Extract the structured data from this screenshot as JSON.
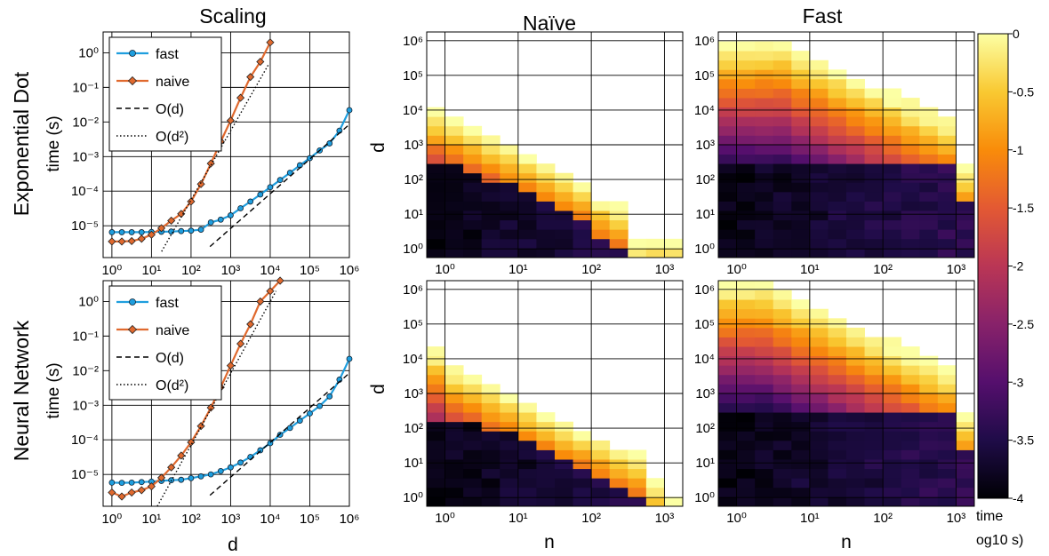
{
  "column_titles": {
    "scaling": "Scaling",
    "naive": "Naïve",
    "fast": "Fast"
  },
  "row_titles": {
    "top": [
      "Exponential Dot",
      "time (s)"
    ],
    "bottom": [
      "Neural Network",
      "time (s)"
    ]
  },
  "axis_labels": {
    "d": "d",
    "n": "n"
  },
  "colorbar": {
    "ticks": [
      "0",
      "-0.5",
      "-1",
      "-1.5",
      "-2",
      "-2.5",
      "-3",
      "-3.5",
      "-4"
    ],
    "label_line1": "time",
    "label_line2": "og10 s)",
    "range": [
      -4,
      0
    ],
    "colormap": "inferno"
  },
  "chart_data": [
    {
      "type": "line",
      "panel": "exponential-dot-scaling",
      "xlabel": "",
      "ylabel": "time (s)",
      "xscale": "log",
      "yscale": "log",
      "xlim": [
        0.6,
        1000000
      ],
      "ylim": [
        1.2e-06,
        4
      ],
      "grid": true,
      "legend": "top-left",
      "x_ticks": [
        "10⁰",
        "10¹",
        "10²",
        "10³",
        "10⁴",
        "10⁵",
        "10⁶"
      ],
      "y_ticks": [
        "10⁻⁵",
        "10⁻⁴",
        "10⁻³",
        "10⁻²",
        "10⁻¹",
        "10⁰"
      ],
      "series": [
        {
          "name": "fast",
          "color": "#1f9ede",
          "marker": "circle",
          "x": [
            1,
            1.78,
            3.16,
            5.62,
            10,
            17.8,
            31.6,
            56.2,
            100,
            178,
            316,
            562,
            1000,
            1780,
            3160,
            5620,
            10000,
            17800,
            31600,
            56200,
            100000,
            178000,
            316000,
            562000,
            1000000
          ],
          "y": [
            6.5e-06,
            6.5e-06,
            6.5e-06,
            6.5e-06,
            6.6e-06,
            6.7e-06,
            6.8e-06,
            7e-06,
            7.2e-06,
            7.7e-06,
            1.25e-05,
            1.5e-05,
            2e-05,
            3.2e-05,
            5e-05,
            8e-05,
            0.00013,
            0.00021,
            0.00034,
            0.00056,
            0.0009,
            0.0015,
            0.0024,
            0.0056,
            0.022
          ]
        },
        {
          "name": "naive",
          "color": "#e0692e",
          "marker": "diamond",
          "x": [
            1,
            1.78,
            3.16,
            5.62,
            10,
            17.8,
            31.6,
            56.2,
            100,
            178,
            316,
            562,
            1000,
            1780,
            3160,
            5620,
            10000
          ],
          "y": [
            3.5e-06,
            3.5e-06,
            3.6e-06,
            4.2e-06,
            5.5e-06,
            8.5e-06,
            1.4e-05,
            2.2e-05,
            5e-05,
            0.00016,
            0.00063,
            0.0027,
            0.011,
            0.05,
            0.2,
            0.55,
            2
          ]
        },
        {
          "name": "O(d)",
          "color": "#000000",
          "dash": "dashed",
          "x": [
            300,
            1000000
          ],
          "y": [
            2.5e-06,
            0.0085
          ]
        },
        {
          "name": "O(d²)",
          "color": "#000000",
          "dash": "dotted",
          "x": [
            18,
            9000
          ],
          "y": [
            1.8e-06,
            0.45
          ]
        }
      ]
    },
    {
      "type": "line",
      "panel": "neural-network-scaling",
      "xlabel": "d",
      "ylabel": "time (s)",
      "xscale": "log",
      "yscale": "log",
      "xlim": [
        0.6,
        1000000
      ],
      "ylim": [
        1.2e-06,
        4
      ],
      "grid": true,
      "legend": "top-left",
      "x_ticks": [
        "10⁰",
        "10¹",
        "10²",
        "10³",
        "10⁴",
        "10⁵",
        "10⁶"
      ],
      "y_ticks": [
        "10⁻⁵",
        "10⁻⁴",
        "10⁻³",
        "10⁻²",
        "10⁻¹",
        "10⁰"
      ],
      "series": [
        {
          "name": "fast",
          "color": "#1f9ede",
          "marker": "circle",
          "x": [
            1,
            1.78,
            3.16,
            5.62,
            10,
            17.8,
            31.6,
            56.2,
            100,
            178,
            316,
            562,
            1000,
            1780,
            3160,
            5620,
            10000,
            17800,
            31600,
            56200,
            100000,
            178000,
            316000,
            562000,
            1000000
          ],
          "y": [
            5.8e-06,
            5.7e-06,
            5.8e-06,
            6e-06,
            6.2e-06,
            6.5e-06,
            6.8e-06,
            7e-06,
            7.8e-06,
            8.8e-06,
            1e-05,
            1.25e-05,
            1.6e-05,
            2.2e-05,
            3.2e-05,
            5e-05,
            8e-05,
            0.00014,
            0.00022,
            0.00036,
            0.00058,
            0.00095,
            0.0018,
            0.0055,
            0.022
          ]
        },
        {
          "name": "naive",
          "color": "#e0692e",
          "marker": "diamond",
          "x": [
            1,
            1.78,
            3.16,
            5.62,
            10,
            17.8,
            31.6,
            56.2,
            100,
            178,
            316,
            562,
            1000,
            1780,
            3160,
            5620,
            10000,
            17800
          ],
          "y": [
            3e-06,
            2.3e-06,
            3e-06,
            3.5e-06,
            4.5e-06,
            8e-06,
            1.6e-05,
            3.5e-05,
            8.5e-05,
            0.00025,
            0.00085,
            0.0033,
            0.014,
            0.06,
            0.22,
            1,
            2,
            4
          ]
        },
        {
          "name": "O(d)",
          "color": "#000000",
          "dash": "dashed",
          "x": [
            300,
            1000000
          ],
          "y": [
            2.5e-06,
            0.0085
          ]
        },
        {
          "name": "O(d²)",
          "color": "#000000",
          "dash": "dotted",
          "x": [
            14,
            14000
          ],
          "y": [
            1.2e-06,
            2
          ]
        }
      ]
    },
    {
      "type": "heatmap",
      "panel": "exponential-dot-naive",
      "xlabel": "",
      "ylabel": "d",
      "xscale": "log",
      "yscale": "log",
      "x_ticks": [
        "10⁰",
        "10¹",
        "10²",
        "10³"
      ],
      "y_ticks": [
        "10⁰",
        "10¹",
        "10²",
        "10³",
        "10⁴",
        "10⁵",
        "10⁶"
      ],
      "value": "log10 time (s)",
      "cols": 14,
      "rows": 24,
      "boundary": [
        4,
        3.75,
        3.5,
        3.25,
        3,
        2.75,
        2.5,
        2.25,
        2,
        1.5,
        1.25,
        0.25
      ],
      "low_offset": 2.5,
      "high_offset": 3.2
    },
    {
      "type": "heatmap",
      "panel": "exponential-dot-fast",
      "xlabel": "",
      "ylabel": "",
      "xscale": "log",
      "yscale": "log",
      "x_ticks": [
        "10⁰",
        "10¹",
        "10²",
        "10³"
      ],
      "y_ticks": [
        "10⁰",
        "10¹",
        "10²",
        "10³",
        "10⁴",
        "10⁵",
        "10⁶"
      ],
      "value": "log10 time (s)",
      "cols": 14,
      "rows": 24,
      "boundary": [
        6,
        6,
        6,
        6,
        5.75,
        5.5,
        5.25,
        5,
        4.75,
        4.5,
        4.25,
        4,
        3.75,
        2.5
      ],
      "low_offset": 2.5,
      "high_offset": 4
    },
    {
      "type": "heatmap",
      "panel": "neural-network-naive",
      "xlabel": "n",
      "ylabel": "d",
      "xscale": "log",
      "yscale": "log",
      "x_ticks": [
        "10⁰",
        "10¹",
        "10²",
        "10³"
      ],
      "y_ticks": [
        "10⁰",
        "10¹",
        "10²",
        "10³",
        "10⁴",
        "10⁵",
        "10⁶"
      ],
      "value": "log10 time (s)",
      "cols": 14,
      "rows": 24,
      "boundary": [
        4.25,
        3.75,
        3.5,
        3.25,
        3,
        2.75,
        2.5,
        2.25,
        2,
        1.75,
        1.5,
        1.25,
        0.5,
        0
      ],
      "low_offset": 2.3,
      "high_offset": 3.2
    },
    {
      "type": "heatmap",
      "panel": "neural-network-fast",
      "xlabel": "n",
      "ylabel": "",
      "xscale": "log",
      "yscale": "log",
      "x_ticks": [
        "10⁰",
        "10¹",
        "10²",
        "10³"
      ],
      "y_ticks": [
        "10⁰",
        "10¹",
        "10²",
        "10³",
        "10⁴",
        "10⁵",
        "10⁶"
      ],
      "value": "log10 time (s)",
      "cols": 14,
      "rows": 24,
      "boundary": [
        6.25,
        6.25,
        6.25,
        6,
        5.75,
        5.5,
        5.25,
        5,
        4.75,
        4.5,
        4.25,
        4,
        3.75,
        2.5
      ],
      "low_offset": 2.4,
      "high_offset": 4
    }
  ]
}
